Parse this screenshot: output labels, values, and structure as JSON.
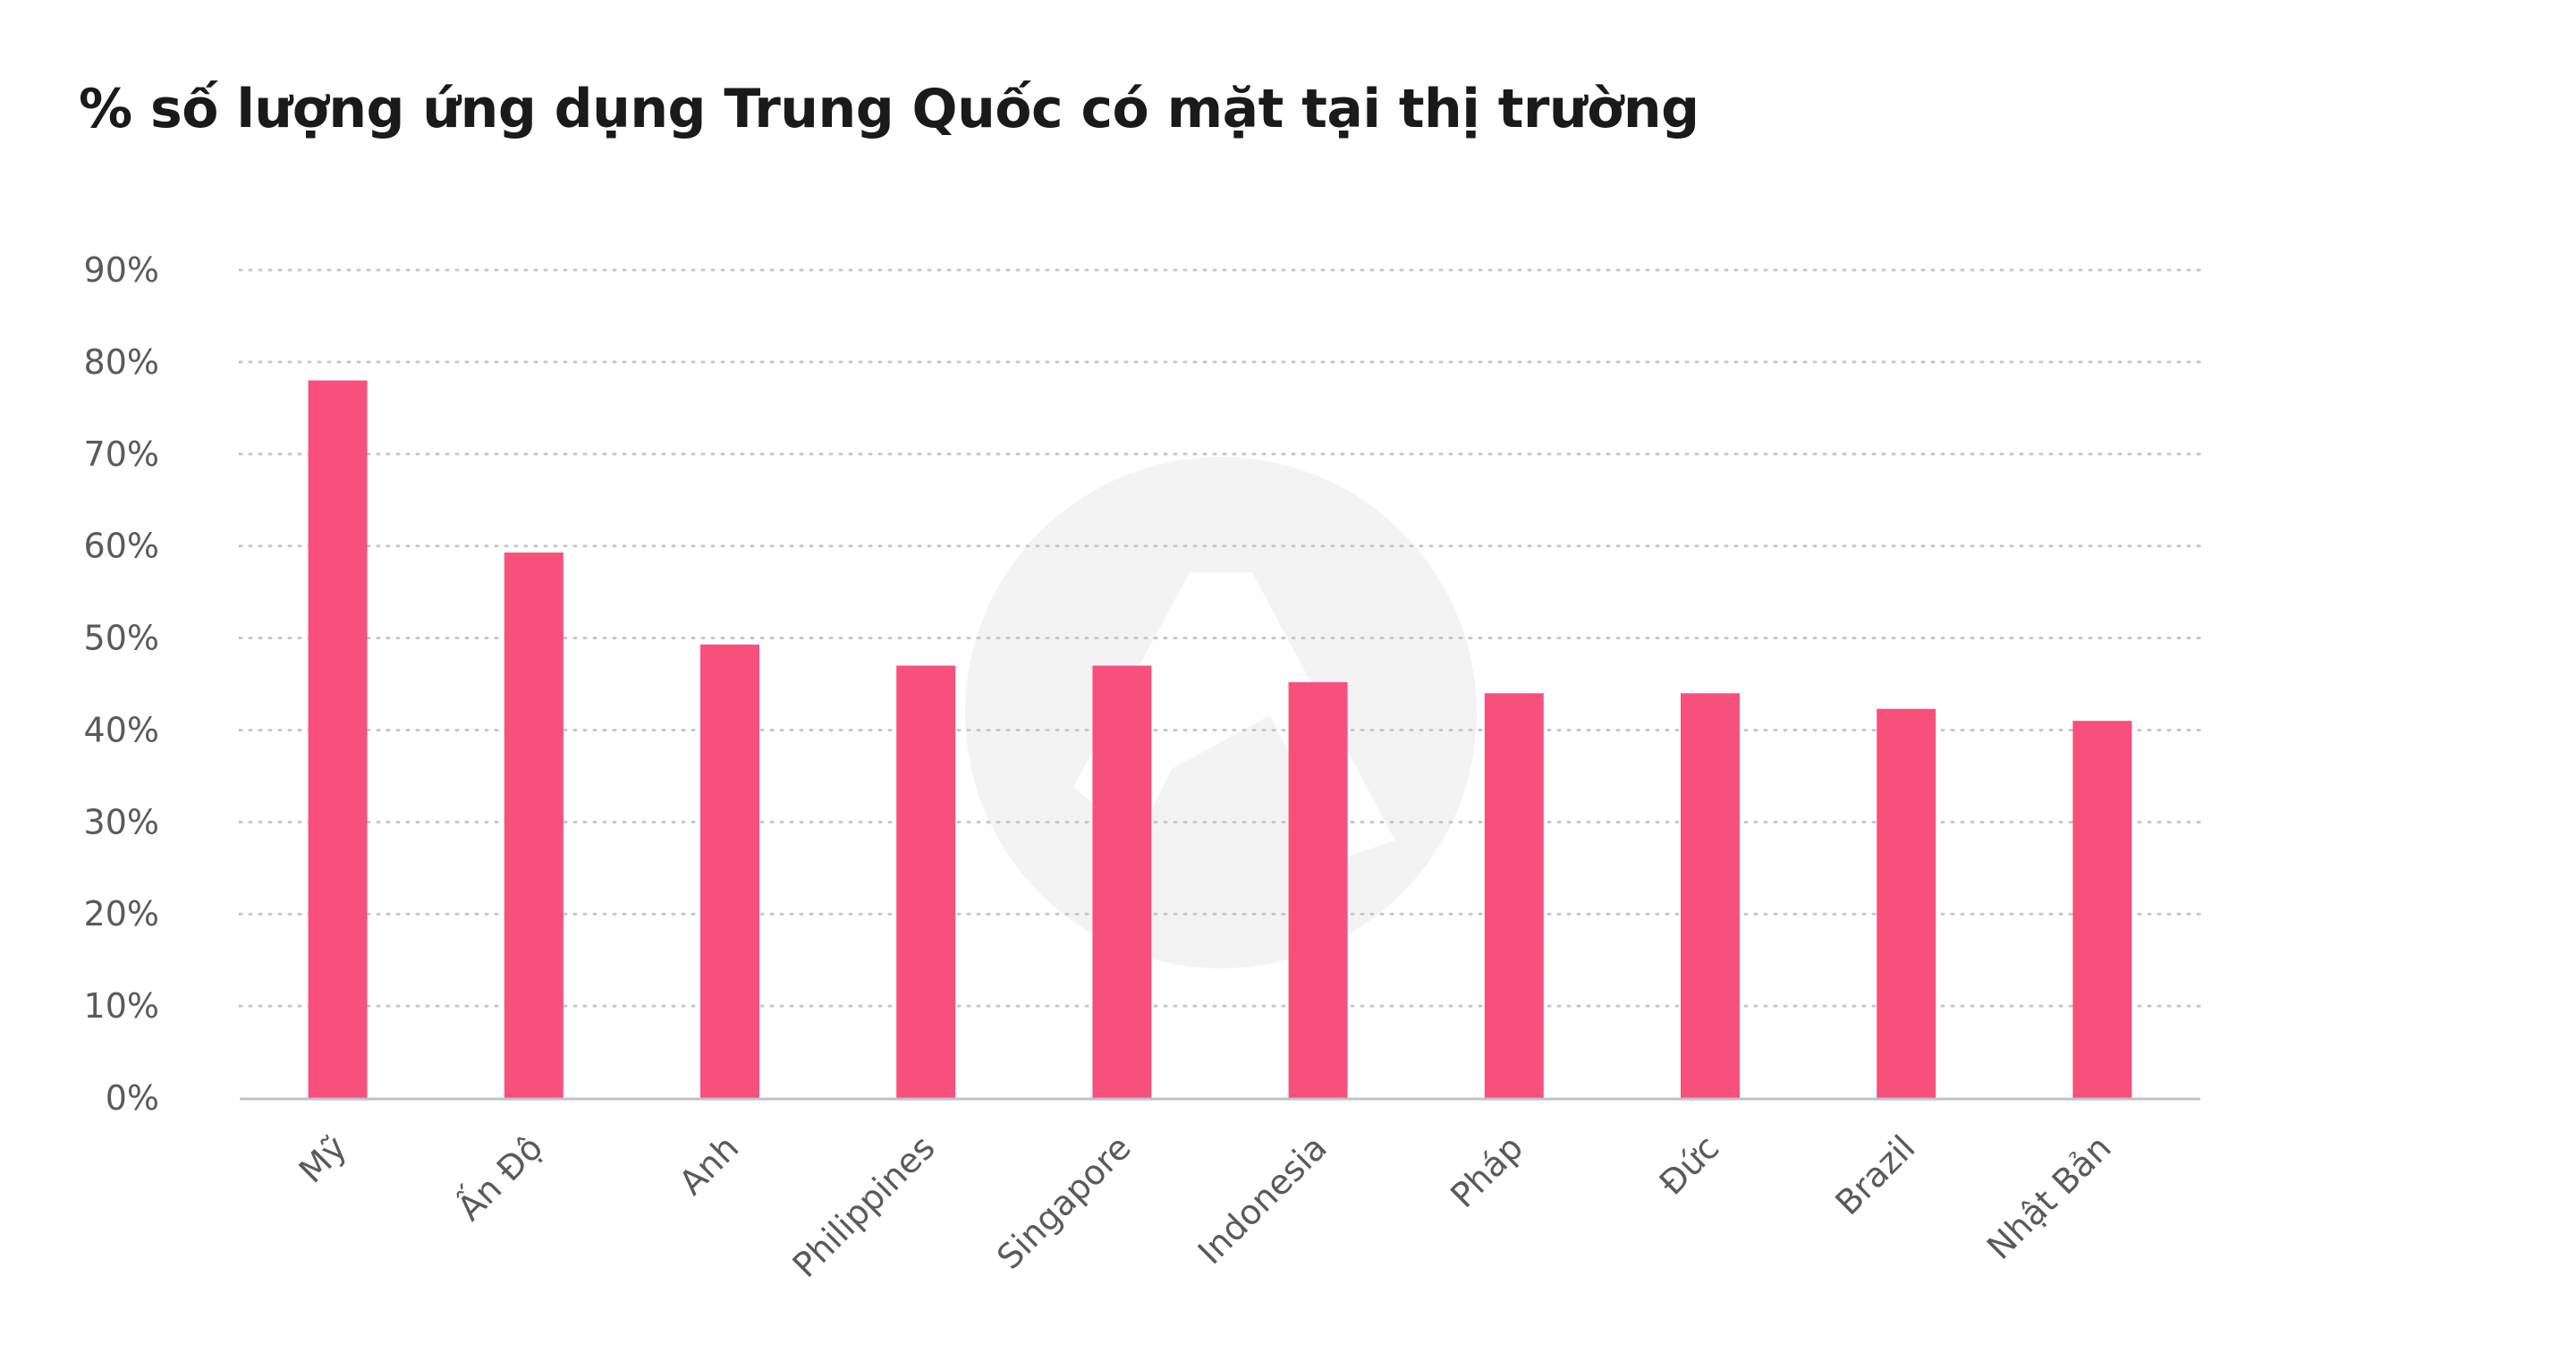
{
  "chart_data": {
    "type": "bar",
    "title": "% số lượng ứng dụng Trung Quốc có mặt tại thị trường",
    "xlabel": "",
    "ylabel": "",
    "categories": [
      "Mỹ",
      "Ấn Độ",
      "Anh",
      "Philippines",
      "Singapore",
      "Indonesia",
      "Pháp",
      "Đức",
      "Brazil",
      "Nhật Bản"
    ],
    "values": [
      78,
      59.3,
      49.3,
      47,
      47,
      45.2,
      44,
      44,
      42.3,
      41
    ],
    "ylim": [
      0,
      90
    ],
    "yticks": [
      0,
      10,
      20,
      30,
      40,
      50,
      60,
      70,
      80,
      90
    ],
    "ytick_labels": [
      "0%",
      "10%",
      "20%",
      "30%",
      "40%",
      "50%",
      "60%",
      "70%",
      "80%",
      "90%"
    ],
    "grid": true,
    "bar_color": "#f7507d",
    "grid_color": "#c8c8c8",
    "axis_color": "#c0c0cc",
    "watermark_color": "#f3f3f3"
  }
}
